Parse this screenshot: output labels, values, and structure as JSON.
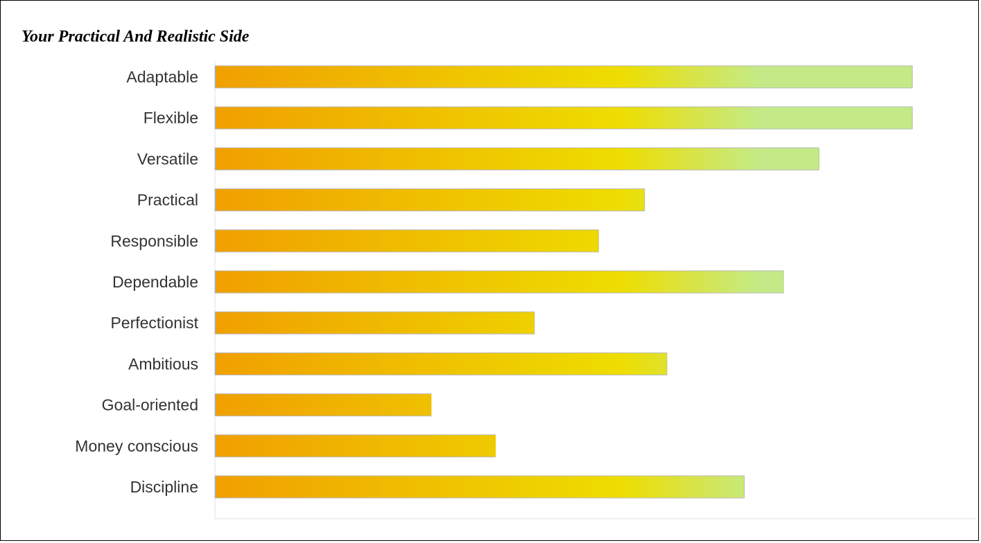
{
  "chart_data": {
    "type": "bar",
    "orientation": "horizontal",
    "title": "Your Practical And Realistic Side",
    "xlabel": "",
    "ylabel": "",
    "categories": [
      "Adaptable",
      "Flexible",
      "Versatile",
      "Practical",
      "Responsible",
      "Dependable",
      "Perfectionist",
      "Ambitious",
      "Goal-oriented",
      "Money conscious",
      "Discipline"
    ],
    "values": [
      100,
      100,
      86.6,
      61.6,
      55,
      81.5,
      45.8,
      64.8,
      31,
      40.2,
      75.9
    ],
    "xlim": [
      0,
      110
    ],
    "grid": false,
    "legend": "none",
    "colors": {
      "bar_start": "#f0a000",
      "bar_mid": "#eedd00",
      "bar_end": "#c4ea88",
      "bar_border": "#b8b8b8",
      "axis": "#e0e0e0"
    }
  }
}
